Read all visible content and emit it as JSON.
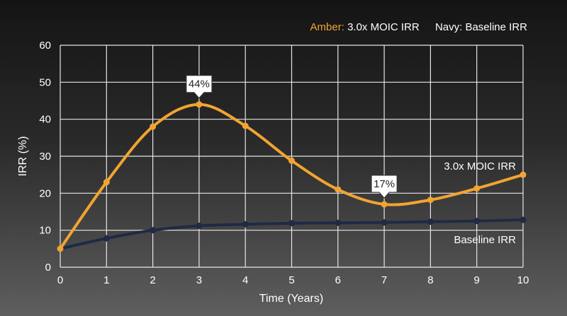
{
  "chart_data": {
    "type": "line",
    "title": "",
    "xlabel": "Time (Years)",
    "ylabel": "IRR (%)",
    "xlim": [
      0,
      10
    ],
    "ylim": [
      0,
      60
    ],
    "x_ticks": [
      0,
      1,
      2,
      3,
      4,
      5,
      6,
      7,
      8,
      9,
      10
    ],
    "y_ticks": [
      0,
      10,
      20,
      30,
      40,
      50,
      60
    ],
    "grid": true,
    "legend": {
      "placement": "top-right",
      "entries": [
        {
          "key": "Amber:",
          "text": "3.0x MOIC IRR"
        },
        {
          "key": "Navy:",
          "text": "Baseline IRR"
        }
      ]
    },
    "x": [
      0,
      1,
      2,
      3,
      4,
      5,
      6,
      7,
      8,
      9,
      10
    ],
    "series": [
      {
        "name": "3.0x MOIC IRR",
        "color": "#f2a431",
        "values": [
          5,
          23,
          38,
          44,
          38.2,
          28.8,
          21,
          17,
          18.2,
          21.3,
          25
        ]
      },
      {
        "name": "Baseline IRR",
        "color": "#1f2a44",
        "values": [
          5,
          7.8,
          10,
          11.2,
          11.6,
          11.9,
          12,
          12.1,
          12.3,
          12.5,
          12.8
        ]
      }
    ],
    "annotations": [
      {
        "label": "44%",
        "x": 3,
        "y": 44
      },
      {
        "label": "17%",
        "x": 7,
        "y": 17
      }
    ]
  }
}
